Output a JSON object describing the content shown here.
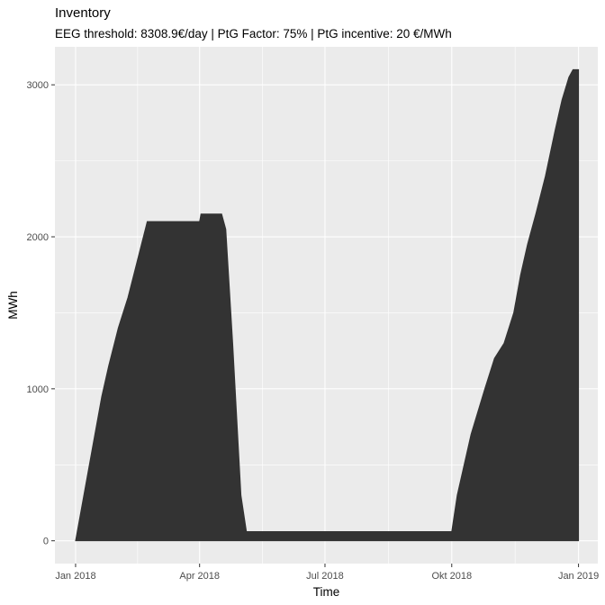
{
  "chart_data": {
    "type": "area",
    "title": "Inventory",
    "subtitle": "EEG threshold: 8308.9€/day | PtG Factor: 75% | PtG incentive: 20 €/MWh",
    "xlabel": "Time",
    "ylabel": "MWh",
    "x_tick_labels": [
      "Jan 2018",
      "Apr 2018",
      "Jul 2018",
      "Okt 2018",
      "Jan 2019"
    ],
    "x_tick_dates": [
      "2018-01-01",
      "2018-04-01",
      "2018-07-01",
      "2018-10-01",
      "2019-01-01"
    ],
    "y_ticks": [
      0,
      1000,
      2000,
      3000
    ],
    "xlim": [
      "2017-12-17",
      "2019-01-15"
    ],
    "ylim": [
      -150,
      3250
    ],
    "grid": true,
    "fill_color": "#333333",
    "panel_color": "#ebebeb",
    "series": [
      {
        "x": [
          "2018-01-01",
          "2018-01-05",
          "2018-01-10",
          "2018-01-15",
          "2018-01-20",
          "2018-01-25",
          "2018-02-01",
          "2018-02-08",
          "2018-02-15",
          "2018-02-22",
          "2018-03-01",
          "2018-03-10",
          "2018-03-20",
          "2018-04-01",
          "2018-04-02",
          "2018-04-10",
          "2018-04-17",
          "2018-04-20",
          "2018-04-25",
          "2018-05-01",
          "2018-05-05",
          "2018-05-08",
          "2018-06-01",
          "2018-07-01",
          "2018-08-01",
          "2018-09-01",
          "2018-10-01",
          "2018-10-05",
          "2018-10-10",
          "2018-10-15",
          "2018-10-20",
          "2018-10-25",
          "2018-11-01",
          "2018-11-08",
          "2018-11-15",
          "2018-11-20",
          "2018-11-25",
          "2018-12-01",
          "2018-12-08",
          "2018-12-15",
          "2018-12-20",
          "2018-12-25",
          "2018-12-28",
          "2019-01-01"
        ],
        "values": [
          0,
          200,
          450,
          700,
          950,
          1150,
          1400,
          1600,
          1850,
          2100,
          2100,
          2100,
          2100,
          2100,
          2150,
          2150,
          2150,
          2050,
          1300,
          300,
          60,
          60,
          60,
          60,
          60,
          60,
          60,
          300,
          500,
          700,
          850,
          1000,
          1200,
          1300,
          1500,
          1750,
          1950,
          2150,
          2400,
          2700,
          2900,
          3050,
          3100,
          3100
        ]
      }
    ]
  }
}
